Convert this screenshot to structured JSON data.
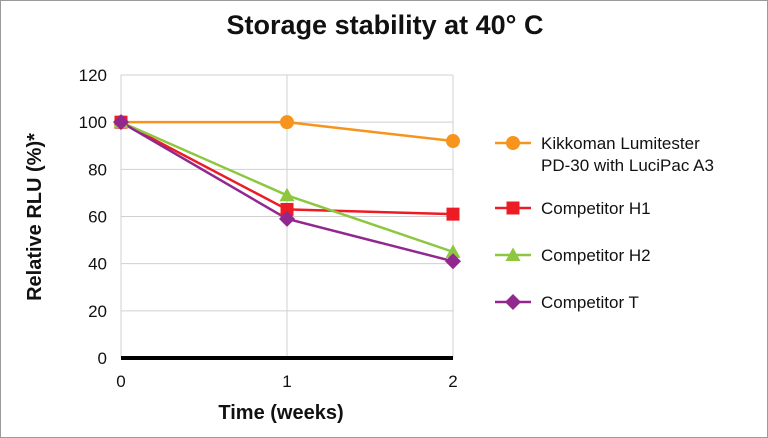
{
  "chart_data": {
    "type": "line",
    "title": "Storage stability at 40° C",
    "xlabel": "Time (weeks)",
    "ylabel": "Relative RLU (%)*",
    "x": [
      0,
      1,
      2
    ],
    "xlim": [
      0,
      2
    ],
    "ylim": [
      0,
      120
    ],
    "yticks": [
      0,
      20,
      40,
      60,
      80,
      100,
      120
    ],
    "xticks": [
      0,
      1,
      2
    ],
    "grid": true,
    "legend_position": "right",
    "series": [
      {
        "name_lines": [
          "Kikkoman Lumitester",
          "PD-30 with LuciPac A3"
        ],
        "values": [
          100,
          100,
          92
        ],
        "color": "#f7941d",
        "marker": "circle"
      },
      {
        "name_lines": [
          "Competitor H1"
        ],
        "values": [
          100,
          63,
          61
        ],
        "color": "#ed1c24",
        "marker": "square"
      },
      {
        "name_lines": [
          "Competitor H2"
        ],
        "values": [
          100,
          69,
          45
        ],
        "color": "#8dc63f",
        "marker": "triangle"
      },
      {
        "name_lines": [
          "Competitor T"
        ],
        "values": [
          100,
          59,
          41
        ],
        "color": "#92278f",
        "marker": "diamond"
      }
    ]
  }
}
